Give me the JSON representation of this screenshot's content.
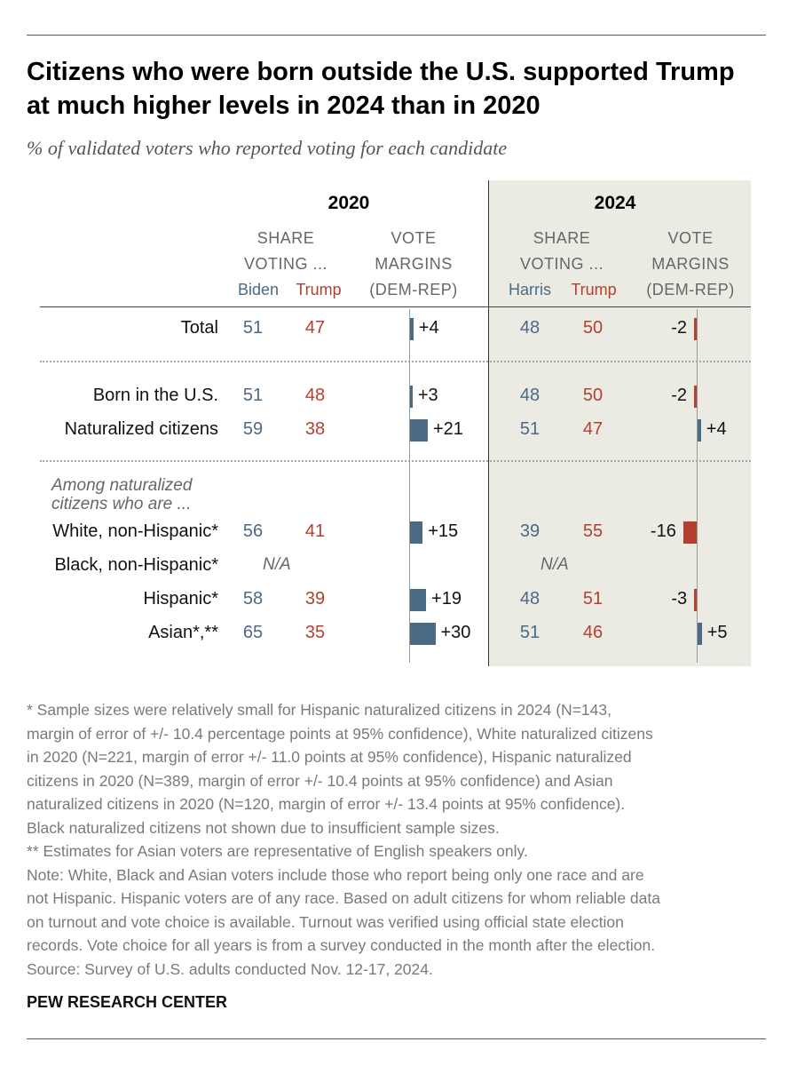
{
  "title": "Citizens who were born outside the U.S. supported Trump at much higher levels in 2024 than in 2020",
  "subtitle": "% of validated voters who reported voting for each candidate",
  "headers": {
    "y2020": "2020",
    "y2024": "2024",
    "share_line1": "SHARE",
    "share_line2": "VOTING ...",
    "margin_line1": "VOTE",
    "margin_line2": "MARGINS",
    "margin_line3": "(DEM-REP)",
    "biden": "Biden",
    "harris": "Harris",
    "trump": "Trump"
  },
  "among_label": "Among naturalized citizens who are ...",
  "na_text": "N/A",
  "colors": {
    "dem": "#4a6a86",
    "rep": "#b3402f",
    "panel_2024": "#ecebe3"
  },
  "chart_data": {
    "type": "table",
    "columns": [
      "2020 Biden",
      "2020 Trump",
      "2020 margin",
      "2024 Harris",
      "2024 Trump",
      "2024 margin"
    ],
    "rows": [
      {
        "label": "Total",
        "y2020": {
          "dem": 51,
          "rep": 47,
          "margin": 4,
          "margin_label": "+4"
        },
        "y2024": {
          "dem": 48,
          "rep": 50,
          "margin": -2,
          "margin_label": "-2"
        }
      },
      {
        "label": "Born in the U.S.",
        "y2020": {
          "dem": 51,
          "rep": 48,
          "margin": 3,
          "margin_label": "+3"
        },
        "y2024": {
          "dem": 48,
          "rep": 50,
          "margin": -2,
          "margin_label": "-2"
        }
      },
      {
        "label": "Naturalized citizens",
        "y2020": {
          "dem": 59,
          "rep": 38,
          "margin": 21,
          "margin_label": "+21"
        },
        "y2024": {
          "dem": 51,
          "rep": 47,
          "margin": 4,
          "margin_label": "+4"
        }
      },
      {
        "label": "White, non-Hispanic*",
        "y2020": {
          "dem": 56,
          "rep": 41,
          "margin": 15,
          "margin_label": "+15"
        },
        "y2024": {
          "dem": 39,
          "rep": 55,
          "margin": -16,
          "margin_label": "-16"
        }
      },
      {
        "label": "Black, non-Hispanic*",
        "y2020": null,
        "y2024": null
      },
      {
        "label": "Hispanic*",
        "y2020": {
          "dem": 58,
          "rep": 39,
          "margin": 19,
          "margin_label": "+19"
        },
        "y2024": {
          "dem": 48,
          "rep": 51,
          "margin": -3,
          "margin_label": "-3"
        }
      },
      {
        "label": "Asian*,**",
        "y2020": {
          "dem": 65,
          "rep": 35,
          "margin": 30,
          "margin_label": "+30"
        },
        "y2024": {
          "dem": 51,
          "rep": 46,
          "margin": 5,
          "margin_label": "+5"
        }
      }
    ]
  },
  "notes": [
    "* Sample sizes were relatively small for Hispanic naturalized citizens in 2024 (N=143,",
    "margin of error of +/- 10.4 percentage points at 95% confidence), White naturalized citizens",
    "in 2020 (N=221, margin of error +/- 11.0 points at 95% confidence), Hispanic naturalized",
    "citizens in 2020 (N=389, margin of error +/- 10.4 points at 95% confidence) and Asian",
    "naturalized citizens in 2020 (N=120, margin of error +/- 13.4 points at 95% confidence).",
    "Black naturalized citizens not shown due to insufficient sample sizes.",
    "** Estimates for Asian voters are representative of English speakers only.",
    "Note: White, Black and Asian voters include those who report being only one race and are",
    "not Hispanic. Hispanic voters are of any race. Based on adult citizens for whom reliable data",
    "on turnout and vote choice is available. Turnout was verified using official state election",
    "records. Vote choice for all years is from a survey conducted in the month after the election.",
    "Source: Survey of U.S. adults conducted Nov. 12-17, 2024."
  ],
  "brand": "PEW RESEARCH CENTER"
}
